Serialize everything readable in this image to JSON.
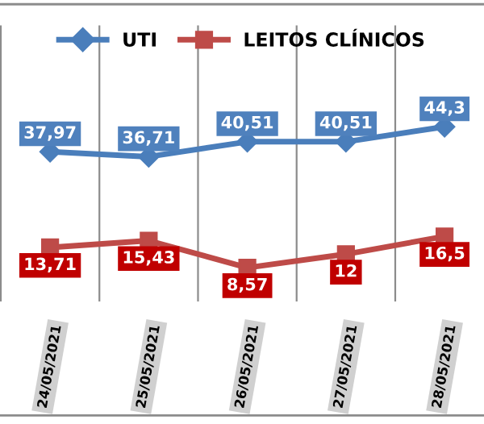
{
  "chart_data": {
    "type": "line",
    "categories": [
      "24/05/2021",
      "25/05/2021",
      "26/05/2021",
      "27/05/2021",
      "28/05/2021"
    ],
    "series": [
      {
        "name": "UTI",
        "color": "#4a7ebb",
        "values": [
          37.97,
          36.71,
          40.51,
          40.51,
          44.3
        ],
        "value_labels": [
          "37,97",
          "36,71",
          "40,51",
          "40,51",
          "44,3"
        ],
        "marker": "diamond"
      },
      {
        "name": "LEITOS CLÍNICOS",
        "color": "#be4b48",
        "values": [
          13.71,
          15.43,
          8.57,
          12,
          16.5
        ],
        "value_labels": [
          "13,71",
          "15,43",
          "8,57",
          "12",
          "16,5"
        ],
        "marker": "square"
      }
    ],
    "legend": "top",
    "grid": "x",
    "ylim": [
      0,
      70
    ]
  }
}
